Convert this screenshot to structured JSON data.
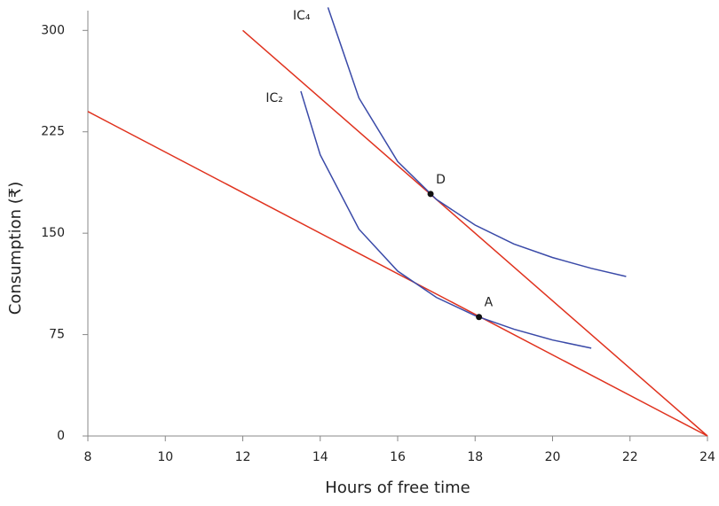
{
  "chart_data": {
    "type": "line",
    "xlabel": "Hours of free time",
    "ylabel": "Consumption (₹)",
    "xlim": [
      8,
      24
    ],
    "xticks": [
      8,
      10,
      12,
      14,
      16,
      18,
      20,
      22,
      24
    ],
    "ylim": [
      0,
      312
    ],
    "yticks": [
      0,
      75,
      150,
      225,
      300
    ],
    "series": [
      {
        "color": "#e0321e",
        "x": [
          8,
          24
        ],
        "values": [
          240,
          0
        ]
      },
      {
        "color": "#e0321e",
        "x": [
          12,
          24
        ],
        "values": [
          300,
          0
        ]
      },
      {
        "name": "IC₂",
        "color": "#3a4aa8",
        "x": [
          13.5,
          14,
          15,
          16,
          17,
          18,
          19,
          20,
          21
        ],
        "values": [
          255,
          208,
          153,
          122,
          102.5,
          89,
          79,
          71,
          65
        ]
      },
      {
        "name": "IC₄",
        "color": "#3a4aa8",
        "x": [
          14.2,
          15,
          16,
          17,
          18,
          19,
          20,
          21,
          21.9
        ],
        "values": [
          317,
          250,
          203,
          175,
          156,
          142,
          132,
          124,
          118
        ]
      }
    ],
    "points": [
      {
        "label": "A",
        "x": 18.1,
        "y": 88
      },
      {
        "label": "D",
        "x": 16.85,
        "y": 179
      }
    ]
  }
}
